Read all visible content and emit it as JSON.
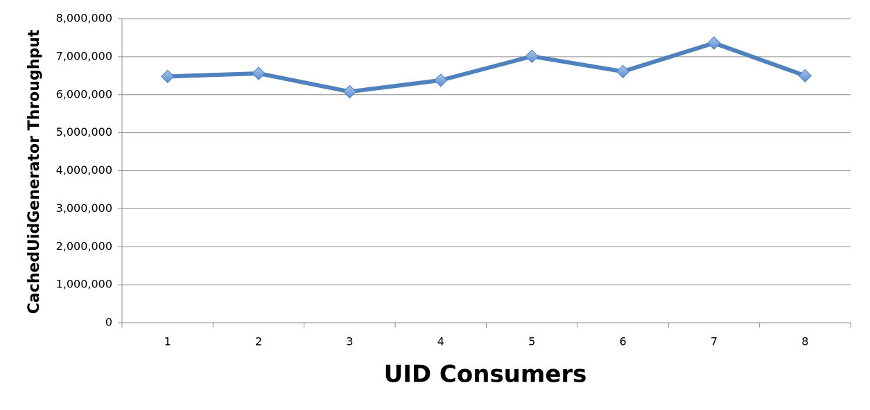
{
  "chart_data": {
    "type": "line",
    "x_label": "UID Consumers",
    "y_label": "CachedUidGenerator Throughput",
    "categories": [
      "1",
      "2",
      "3",
      "4",
      "5",
      "6",
      "7",
      "8"
    ],
    "series": [
      {
        "name": "CachedUidGenerator Throughput",
        "color": "#4f81bd",
        "values": [
          6480000,
          6560000,
          6080000,
          6380000,
          7010000,
          6610000,
          7360000,
          6500000
        ]
      }
    ],
    "ylim": [
      0,
      8000000
    ],
    "yticks": [
      0,
      {
        "value": 1000000,
        "label": "1,000,000"
      },
      {
        "value": 2000000,
        "label": "2,000,000"
      },
      {
        "value": 3000000,
        "label": "3,000,000"
      },
      {
        "value": 4000000,
        "label": "4,000,000"
      },
      {
        "value": 5000000,
        "label": "5,000,000"
      },
      {
        "value": 6000000,
        "label": "6,000,000"
      },
      {
        "value": 7000000,
        "label": "7,000,000"
      },
      {
        "value": 8000000,
        "label": "8,000,000"
      }
    ],
    "grid": true
  }
}
